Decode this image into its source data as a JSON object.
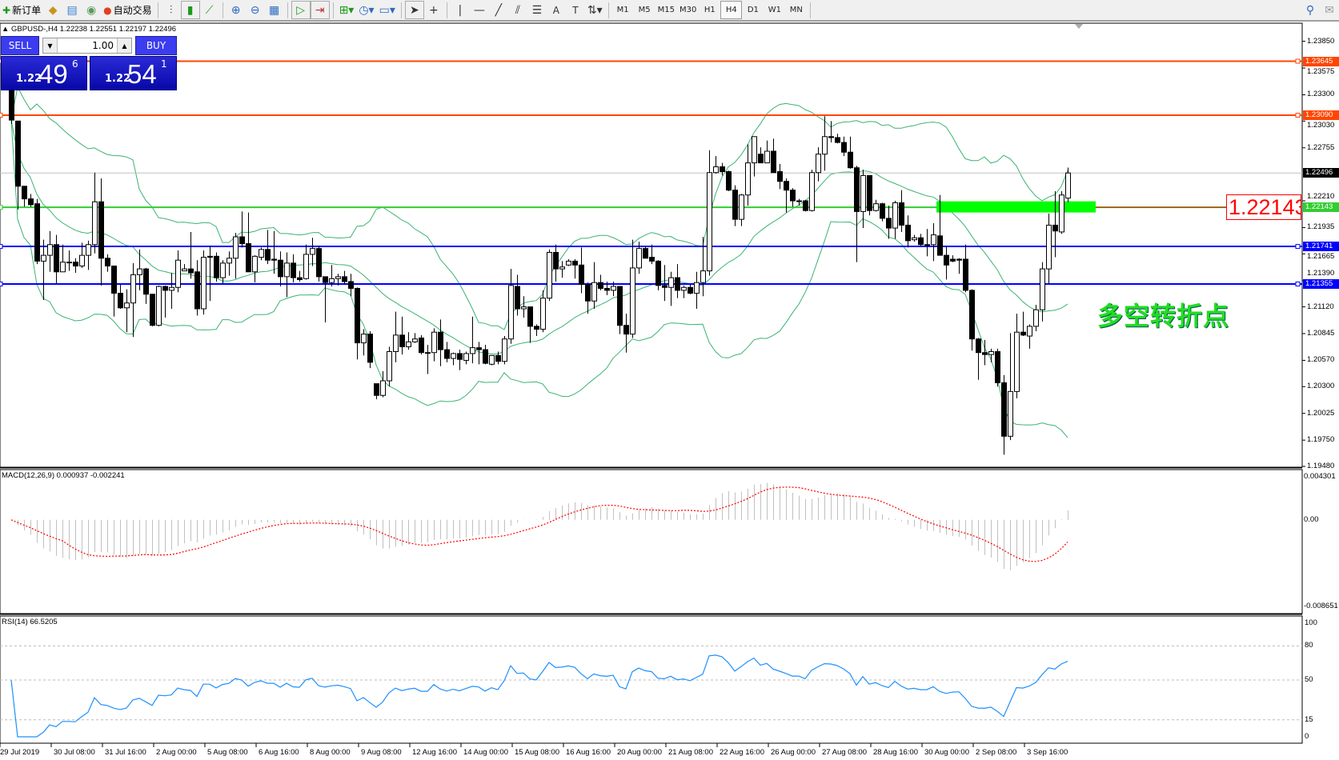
{
  "toolbar": {
    "new_order": "新订单",
    "auto_trade": "自动交易",
    "icons": [
      "market-watch-icon",
      "data-window-icon",
      "navigator-icon",
      "bar-chart-icon",
      "candlestick-icon",
      "line-chart-icon",
      "zoom-in-icon",
      "zoom-out-icon",
      "tile-windows-icon",
      "autoscroll-icon",
      "chart-shift-icon",
      "indicators-icon",
      "periods-icon",
      "templates-icon",
      "cursor-icon",
      "crosshair-icon",
      "vertical-line-icon",
      "horizontal-line-icon",
      "trendline-icon",
      "fibonacci-icon",
      "fibo-fan-icon",
      "text-icon",
      "text-label-icon",
      "arrows-icon"
    ],
    "timeframes": [
      "M1",
      "M5",
      "M15",
      "M30",
      "H1",
      "H4",
      "D1",
      "W1",
      "MN"
    ],
    "active_timeframe": "H4"
  },
  "chart": {
    "symbol_line": "GBPUSD-,H4  1.22238 1.22551 1.22197 1.22496"
  },
  "trade_panel": {
    "sell": "SELL",
    "buy": "BUY",
    "lot": "1.00",
    "sell_price": {
      "prefix": "1.22",
      "big": "49",
      "sup": "6"
    },
    "buy_price": {
      "prefix": "1.22",
      "big": "54",
      "sup": "1"
    }
  },
  "annotations": {
    "price_label": "1.22143",
    "note": "多空转折点"
  },
  "chart_data": {
    "type": "candlestick",
    "timeframe": "H4",
    "ylim": [
      1.1948,
      1.2385
    ],
    "price_ticks": [
      "1.23850",
      "1.23575",
      "1.23300",
      "1.23030",
      "1.22755",
      "1.22210",
      "1.21935",
      "1.21665",
      "1.21390",
      "1.21120",
      "1.20845",
      "1.20570",
      "1.20300",
      "1.20025",
      "1.19750",
      "1.19480"
    ],
    "time_labels": [
      "29 Jul 2019",
      "30 Jul 08:00",
      "31 Jul 16:00",
      "2 Aug 00:00",
      "5 Aug 08:00",
      "6 Aug 16:00",
      "8 Aug 00:00",
      "9 Aug 08:00",
      "12 Aug 16:00",
      "14 Aug 00:00",
      "15 Aug 08:00",
      "16 Aug 16:00",
      "20 Aug 00:00",
      "21 Aug 08:00",
      "22 Aug 16:00",
      "26 Aug 00:00",
      "27 Aug 08:00",
      "28 Aug 16:00",
      "30 Aug 00:00",
      "2 Sep 08:00",
      "3 Sep 16:00"
    ],
    "hlines": [
      {
        "price": "1.23645",
        "color": "#ff4500"
      },
      {
        "price": "1.23090",
        "color": "#ff4500"
      },
      {
        "price": "1.22496",
        "color": "#c0c0c0",
        "tag": "#000000"
      },
      {
        "price": "1.22143",
        "color": "#32cd32"
      },
      {
        "price": "1.21741",
        "color": "#0000ff"
      },
      {
        "price": "1.21355",
        "color": "#0000ff"
      }
    ],
    "zone": {
      "price_top": 1.22205,
      "price_bottom": 1.2209,
      "from_bar": 145,
      "color": "#00ff00"
    },
    "bollinger": {
      "period": 20,
      "deviation": 2,
      "color": "#3cb371"
    },
    "candles": [
      [
        1.2355,
        1.2365,
        1.23,
        1.2304
      ],
      [
        1.2303,
        1.2303,
        1.2212,
        1.2236
      ],
      [
        1.2236,
        1.2236,
        1.2215,
        1.2223
      ],
      [
        1.2223,
        1.2228,
        1.2215,
        1.2217
      ],
      [
        1.2218,
        1.2223,
        1.2156,
        1.2159
      ],
      [
        1.2159,
        1.2181,
        1.2119,
        1.2165
      ],
      [
        1.2165,
        1.219,
        1.2148,
        1.2176
      ],
      [
        1.2176,
        1.2186,
        1.2136,
        1.2148
      ],
      [
        1.2148,
        1.2176,
        1.2148,
        1.2158
      ],
      [
        1.2158,
        1.217,
        1.2149,
        1.2158
      ],
      [
        1.2158,
        1.2162,
        1.2147,
        1.2154
      ],
      [
        1.2154,
        1.2178,
        1.2152,
        1.2165
      ],
      [
        1.2165,
        1.218,
        1.215,
        1.2176
      ],
      [
        1.2176,
        1.225,
        1.2167,
        1.222
      ],
      [
        1.222,
        1.2244,
        1.2134,
        1.2162
      ],
      [
        1.2162,
        1.2166,
        1.2148,
        1.2154
      ],
      [
        1.2154,
        1.2154,
        1.2102,
        1.2126
      ],
      [
        1.2126,
        1.2135,
        1.211,
        1.2111
      ],
      [
        1.2111,
        1.213,
        1.2086,
        1.2116
      ],
      [
        1.2116,
        1.2157,
        1.2081,
        1.2145
      ],
      [
        1.2145,
        1.2171,
        1.2129,
        1.2151
      ],
      [
        1.2151,
        1.2152,
        1.2115,
        1.2125
      ],
      [
        1.2125,
        1.2125,
        1.2092,
        1.2093
      ],
      [
        1.2093,
        1.2134,
        1.2092,
        1.2133
      ],
      [
        1.2133,
        1.2134,
        1.2101,
        1.2129
      ],
      [
        1.2129,
        1.2147,
        1.211,
        1.2132
      ],
      [
        1.2132,
        1.217,
        1.2127,
        1.216
      ],
      [
        1.2149,
        1.2156,
        1.2149,
        1.2151
      ],
      [
        1.2151,
        1.2189,
        1.2141,
        1.2147
      ],
      [
        1.2148,
        1.216,
        1.2103,
        1.211
      ],
      [
        1.211,
        1.217,
        1.2104,
        1.2163
      ],
      [
        1.2164,
        1.2175,
        1.2118,
        1.2163
      ],
      [
        1.2164,
        1.2168,
        1.2138,
        1.2142
      ],
      [
        1.2142,
        1.216,
        1.2136,
        1.2157
      ],
      [
        1.2157,
        1.2169,
        1.2144,
        1.2162
      ],
      [
        1.2162,
        1.2188,
        1.2141,
        1.2184
      ],
      [
        1.2184,
        1.221,
        1.2173,
        1.2177
      ],
      [
        1.2177,
        1.2209,
        1.2148,
        1.2148
      ],
      [
        1.2148,
        1.2165,
        1.2137,
        1.2164
      ],
      [
        1.2163,
        1.2173,
        1.216,
        1.2171
      ],
      [
        1.2171,
        1.2191,
        1.2156,
        1.216
      ],
      [
        1.2161,
        1.219,
        1.2146,
        1.216
      ],
      [
        1.216,
        1.2169,
        1.2133,
        1.2143
      ],
      [
        1.2143,
        1.2168,
        1.2122,
        1.2157
      ],
      [
        1.2157,
        1.2166,
        1.2137,
        1.2142
      ],
      [
        1.2142,
        1.2149,
        1.2138,
        1.214
      ],
      [
        1.2141,
        1.2176,
        1.214,
        1.2166
      ],
      [
        1.2166,
        1.2183,
        1.2154,
        1.2172
      ],
      [
        1.2172,
        1.2175,
        1.2138,
        1.2143
      ],
      [
        1.2143,
        1.2143,
        1.2096,
        1.2137
      ],
      [
        1.2137,
        1.2155,
        1.2133,
        1.2141
      ],
      [
        1.2141,
        1.2146,
        1.2134,
        1.2143
      ],
      [
        1.2143,
        1.2149,
        1.2135,
        1.2138
      ],
      [
        1.2138,
        1.2146,
        1.2123,
        1.2131
      ],
      [
        1.2131,
        1.2132,
        1.2058,
        1.2075
      ],
      [
        1.2075,
        1.2089,
        1.2062,
        1.2084
      ],
      [
        1.2084,
        1.2087,
        1.2049,
        1.2055
      ],
      [
        1.2033,
        1.2033,
        1.2017,
        1.2021
      ],
      [
        1.2021,
        1.2046,
        1.2019,
        1.2036
      ],
      [
        1.2036,
        1.2071,
        1.203,
        1.2066
      ],
      [
        1.2066,
        1.2107,
        1.2055,
        1.2083
      ],
      [
        1.2083,
        1.2102,
        1.2063,
        1.2071
      ],
      [
        1.2071,
        1.2086,
        1.2068,
        1.2076
      ],
      [
        1.2076,
        1.2085,
        1.2075,
        1.2079
      ],
      [
        1.208,
        1.2083,
        1.2063,
        1.2065
      ],
      [
        1.2065,
        1.2073,
        1.2043,
        1.2065
      ],
      [
        1.2065,
        1.209,
        1.2056,
        1.2086
      ],
      [
        1.2086,
        1.2099,
        1.2051,
        1.2068
      ],
      [
        1.2068,
        1.2076,
        1.2055,
        1.2059
      ],
      [
        1.2059,
        1.2065,
        1.2052,
        1.2064
      ],
      [
        1.2064,
        1.2068,
        1.2047,
        1.2058
      ],
      [
        1.2057,
        1.2066,
        1.2053,
        1.2064
      ],
      [
        1.2064,
        1.2102,
        1.2054,
        1.207
      ],
      [
        1.207,
        1.2076,
        1.2053,
        1.2068
      ],
      [
        1.2068,
        1.2073,
        1.2053,
        1.2054
      ],
      [
        1.2053,
        1.2062,
        1.2052,
        1.2062
      ],
      [
        1.2062,
        1.2066,
        1.2053,
        1.2056
      ],
      [
        1.2056,
        1.2082,
        1.2053,
        1.2079
      ],
      [
        1.2079,
        1.2151,
        1.2074,
        1.2134
      ],
      [
        1.2133,
        1.2145,
        1.2103,
        1.211
      ],
      [
        1.211,
        1.2123,
        1.2101,
        1.2112
      ],
      [
        1.2112,
        1.2112,
        1.2075,
        1.2092
      ],
      [
        1.2092,
        1.2094,
        1.2082,
        1.2089
      ],
      [
        1.2089,
        1.2129,
        1.2086,
        1.2121
      ],
      [
        1.2121,
        1.2171,
        1.2118,
        1.2168
      ],
      [
        1.2168,
        1.2176,
        1.2138,
        1.2151
      ],
      [
        1.2151,
        1.2159,
        1.2142,
        1.2153
      ],
      [
        1.2155,
        1.2161,
        1.2154,
        1.2159
      ],
      [
        1.2159,
        1.2161,
        1.2141,
        1.2155
      ],
      [
        1.2155,
        1.2173,
        1.2126,
        1.2135
      ],
      [
        1.2135,
        1.2137,
        1.2105,
        1.2118
      ],
      [
        1.2118,
        1.2158,
        1.211,
        1.2137
      ],
      [
        1.2137,
        1.2145,
        1.2129,
        1.2131
      ],
      [
        1.2131,
        1.2138,
        1.2124,
        1.2129
      ],
      [
        1.2129,
        1.2138,
        1.2123,
        1.2133
      ],
      [
        1.2133,
        1.2133,
        1.2084,
        1.2093
      ],
      [
        1.2093,
        1.2105,
        1.2065,
        1.2084
      ],
      [
        1.2084,
        1.2181,
        1.208,
        1.2152
      ],
      [
        1.2152,
        1.2179,
        1.2146,
        1.2172
      ],
      [
        1.2172,
        1.2175,
        1.2162,
        1.2162
      ],
      [
        1.2163,
        1.2176,
        1.2156,
        1.2159
      ],
      [
        1.2159,
        1.216,
        1.2129,
        1.2134
      ],
      [
        1.2134,
        1.2155,
        1.2118,
        1.2132
      ],
      [
        1.2132,
        1.2148,
        1.2113,
        1.2142
      ],
      [
        1.2142,
        1.2156,
        1.2121,
        1.2129
      ],
      [
        1.2129,
        1.2134,
        1.2121,
        1.2132
      ],
      [
        1.2132,
        1.2135,
        1.2125,
        1.2126
      ],
      [
        1.2126,
        1.2148,
        1.211,
        1.2137
      ],
      [
        1.2137,
        1.2184,
        1.2123,
        1.2149
      ],
      [
        1.2149,
        1.2273,
        1.2144,
        1.225
      ],
      [
        1.225,
        1.2267,
        1.2249,
        1.2256
      ],
      [
        1.2256,
        1.226,
        1.2247,
        1.2251
      ],
      [
        1.2251,
        1.2252,
        1.2231,
        1.2232
      ],
      [
        1.2232,
        1.2237,
        1.2195,
        1.2202
      ],
      [
        1.2202,
        1.2228,
        1.2195,
        1.2227
      ],
      [
        1.2227,
        1.2279,
        1.2216,
        1.226
      ],
      [
        1.226,
        1.2287,
        1.2246,
        1.2287
      ],
      [
        1.2269,
        1.2276,
        1.226,
        1.226
      ],
      [
        1.226,
        1.2283,
        1.226,
        1.2272
      ],
      [
        1.2272,
        1.2285,
        1.225,
        1.225
      ],
      [
        1.2251,
        1.2259,
        1.2233,
        1.2241
      ],
      [
        1.2241,
        1.2244,
        1.2209,
        1.2232
      ],
      [
        1.2232,
        1.2234,
        1.2215,
        1.2221
      ],
      [
        1.2221,
        1.2223,
        1.2216,
        1.2221
      ],
      [
        1.2221,
        1.2222,
        1.221,
        1.2211
      ],
      [
        1.2211,
        1.2253,
        1.221,
        1.225
      ],
      [
        1.225,
        1.2276,
        1.2241,
        1.2269
      ],
      [
        1.2269,
        1.2308,
        1.2252,
        1.2287
      ],
      [
        1.2287,
        1.2303,
        1.2281,
        1.2286
      ],
      [
        1.2286,
        1.229,
        1.228,
        1.2281
      ],
      [
        1.2281,
        1.2287,
        1.2267,
        1.2271
      ],
      [
        1.2271,
        1.2287,
        1.2254,
        1.2255
      ],
      [
        1.2255,
        1.2257,
        1.2158,
        1.221
      ],
      [
        1.221,
        1.2253,
        1.2193,
        1.2247
      ],
      [
        1.2247,
        1.2247,
        1.2206,
        1.2211
      ],
      [
        1.2211,
        1.2222,
        1.221,
        1.2218
      ],
      [
        1.2218,
        1.2219,
        1.22,
        1.2203
      ],
      [
        1.2203,
        1.2216,
        1.2182,
        1.2193
      ],
      [
        1.2193,
        1.2221,
        1.2182,
        1.2219
      ],
      [
        1.2219,
        1.2232,
        1.2189,
        1.2196
      ],
      [
        1.2196,
        1.2206,
        1.2173,
        1.218
      ],
      [
        1.2181,
        1.2186,
        1.2179,
        1.2183
      ],
      [
        1.2183,
        1.2187,
        1.2175,
        1.2176
      ],
      [
        1.2176,
        1.2192,
        1.2164,
        1.2176
      ],
      [
        1.2176,
        1.2198,
        1.2159,
        1.2186
      ],
      [
        1.2185,
        1.2227,
        1.2165,
        1.2165
      ],
      [
        1.2165,
        1.2175,
        1.214,
        1.2155
      ],
      [
        1.2161,
        1.2165,
        1.2158,
        1.2159
      ],
      [
        1.2161,
        1.2162,
        1.2146,
        1.216
      ],
      [
        1.2161,
        1.2176,
        1.2127,
        1.2129
      ],
      [
        1.2129,
        1.213,
        1.2067,
        1.2079
      ],
      [
        1.2079,
        1.208,
        1.2037,
        1.2065
      ],
      [
        1.2065,
        1.2078,
        1.2052,
        1.2063
      ],
      [
        1.2063,
        1.2069,
        1.2055,
        1.2066
      ],
      [
        1.2066,
        1.2069,
        1.203,
        1.2034
      ],
      [
        1.2034,
        1.2042,
        1.196,
        1.1979
      ],
      [
        1.1979,
        1.2085,
        1.1975,
        1.2025
      ],
      [
        1.2025,
        1.2105,
        1.2018,
        1.2086
      ],
      [
        1.2086,
        1.2107,
        1.2082,
        1.2083
      ],
      [
        1.2082,
        1.2094,
        1.2069,
        1.2092
      ],
      [
        1.2092,
        1.2114,
        1.2087,
        1.2109
      ],
      [
        1.2109,
        1.2158,
        1.2097,
        1.2151
      ],
      [
        1.2151,
        1.2208,
        1.2136,
        1.2196
      ],
      [
        1.2196,
        1.2231,
        1.2163,
        1.219
      ],
      [
        1.2189,
        1.2231,
        1.2187,
        1.2227
      ],
      [
        1.22238,
        1.22551,
        1.22197,
        1.22496
      ]
    ]
  },
  "macd": {
    "label": "MACD(12,26,9) 0.000937 -0.002241",
    "axis": [
      "0.004301",
      "0.00",
      "-0.008651"
    ],
    "range": [
      -0.008651,
      0.004301
    ],
    "hist_color": "#c0c0c0",
    "signal_color": "#ff0000"
  },
  "rsi": {
    "label": "RSI(14) 66.5205",
    "axis": [
      "100",
      "80",
      "50",
      "15",
      "0"
    ],
    "levels": [
      80,
      50,
      15
    ],
    "color": "#1e90ff"
  }
}
